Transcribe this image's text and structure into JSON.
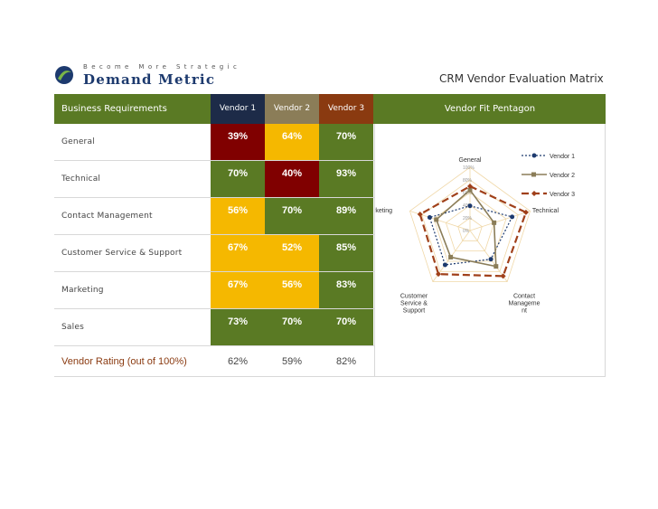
{
  "header": {
    "tagline": "Become More Strategic",
    "brand": "Demand Metric",
    "doc_title": "CRM Vendor Evaluation Matrix"
  },
  "colors": {
    "green": "#5a7a24",
    "yellow": "#f5b800",
    "maroon": "#800000",
    "v1": "#1d2b48",
    "v2": "#8b7d58",
    "v3": "#8a3a10"
  },
  "table": {
    "col_requirements": "Business Requirements",
    "col_v1": "Vendor 1",
    "col_v2": "Vendor 2",
    "col_v3": "Vendor 3",
    "col_pentagon": "Vendor Fit Pentagon",
    "rows": [
      {
        "label": "General",
        "v1": "39%",
        "v2": "64%",
        "v3": "70%",
        "c1": "maroon",
        "c2": "yellow",
        "c3": "green"
      },
      {
        "label": "Technical",
        "v1": "70%",
        "v2": "40%",
        "v3": "93%",
        "c1": "green",
        "c2": "maroon",
        "c3": "green"
      },
      {
        "label": "Contact Management",
        "v1": "56%",
        "v2": "70%",
        "v3": "89%",
        "c1": "yellow",
        "c2": "green",
        "c3": "green"
      },
      {
        "label": "Customer Service & Support",
        "v1": "67%",
        "v2": "52%",
        "v3": "85%",
        "c1": "yellow",
        "c2": "yellow",
        "c3": "green"
      },
      {
        "label": "Marketing",
        "v1": "67%",
        "v2": "56%",
        "v3": "83%",
        "c1": "yellow",
        "c2": "yellow",
        "c3": "green"
      },
      {
        "label": "Sales",
        "v1": "73%",
        "v2": "70%",
        "v3": "70%",
        "c1": "green",
        "c2": "green",
        "c3": "green"
      }
    ],
    "rating_label": "Vendor Rating (out of 100%)",
    "ratings": [
      "62%",
      "59%",
      "82%"
    ]
  },
  "chart_data": {
    "type": "radar",
    "axes": [
      "General",
      "Technical",
      "Contact Manageme nt",
      "Customer Service & Support",
      "Marketing"
    ],
    "ticks": [
      "0%",
      "20%",
      "40%",
      "60%",
      "80%",
      "100%"
    ],
    "range": [
      0,
      100
    ],
    "legend_position": "top-right",
    "series": [
      {
        "name": "Vendor 1",
        "values": [
          39,
          70,
          56,
          67,
          67
        ],
        "color": "#1d3a6e",
        "style": "dotted"
      },
      {
        "name": "Vendor 2",
        "values": [
          64,
          40,
          70,
          52,
          56
        ],
        "color": "#8b7d58",
        "style": "solid"
      },
      {
        "name": "Vendor 3",
        "values": [
          70,
          93,
          89,
          85,
          83
        ],
        "color": "#a0401a",
        "style": "dashed"
      }
    ]
  }
}
